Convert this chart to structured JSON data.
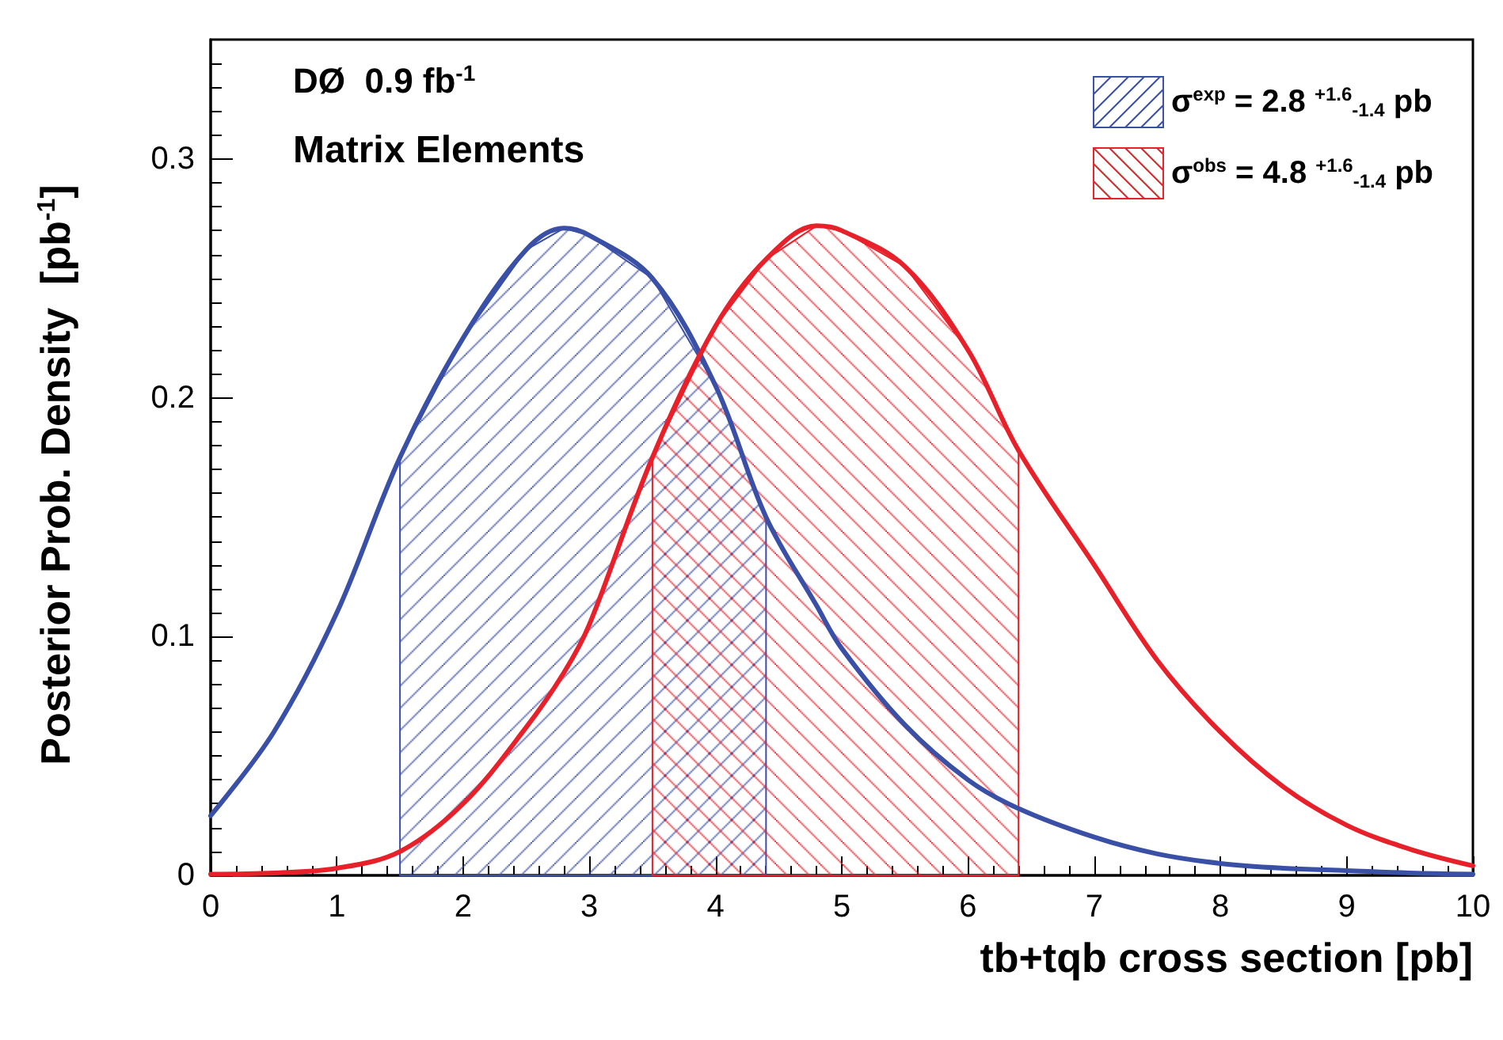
{
  "chart_data": {
    "type": "line",
    "xlabel": "tb+tqb cross section [pb]",
    "ylabel": "Posterior Prob. Density  [pb$^{-1}$]",
    "x": [
      0,
      0.5,
      1,
      1.5,
      2,
      2.5,
      2.8,
      3,
      3.5,
      4,
      4.4,
      4.8,
      5,
      5.5,
      6,
      6.4,
      7,
      7.5,
      8,
      8.5,
      9,
      9.5,
      10
    ],
    "series": [
      {
        "name": "σ$^{exp}$ = 2.8 $^{+1.6}$$_{-1.4}$ pb",
        "color": "#3a4fa6",
        "values": [
          0.025,
          0.06,
          0.11,
          0.175,
          0.225,
          0.262,
          0.271,
          0.268,
          0.25,
          0.205,
          0.15,
          0.113,
          0.095,
          0.063,
          0.04,
          0.028,
          0.016,
          0.009,
          0.005,
          0.003,
          0.002,
          0.001,
          0.0005
        ]
      },
      {
        "name": "σ$^{obs}$ = 4.8 $^{+1.6}$$_{-1.4}$ pb",
        "color": "#e8202a",
        "values": [
          0.0005,
          0.001,
          0.003,
          0.01,
          0.03,
          0.062,
          0.085,
          0.105,
          0.175,
          0.23,
          0.258,
          0.272,
          0.27,
          0.255,
          0.22,
          0.178,
          0.13,
          0.09,
          0.06,
          0.037,
          0.021,
          0.011,
          0.004
        ]
      }
    ],
    "bands": [
      {
        "axis": "x",
        "from": 1.5,
        "to": 4.4,
        "color": "#3a4fa6"
      },
      {
        "axis": "x",
        "from": 3.5,
        "to": 6.4,
        "color": "#e8202a"
      }
    ],
    "annotations": [
      "DØ  0.9 fb$^{-1}$",
      "Matrix Elements"
    ],
    "xlim": [
      0,
      10
    ],
    "xticks": [
      0,
      1,
      2,
      3,
      4,
      5,
      6,
      7,
      8,
      9,
      10
    ],
    "ylim": [
      0,
      0.35
    ],
    "yticks": [
      0,
      0.1,
      0.2,
      0.3
    ],
    "legend": "top right",
    "grid": false,
    "marker": "none",
    "line_style": "solid"
  }
}
